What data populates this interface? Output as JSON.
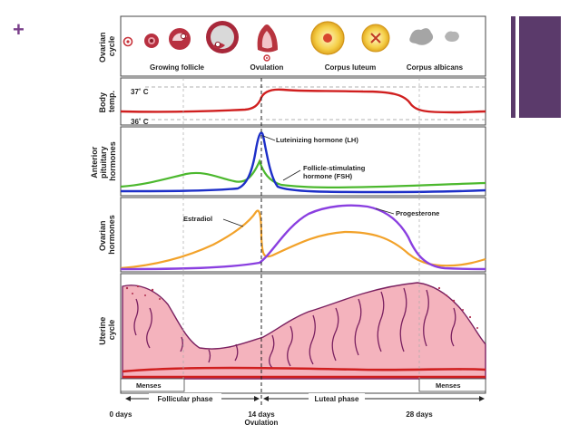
{
  "slide": {
    "plus_glyph": "+",
    "accent_color": "#5b3a6b"
  },
  "diagram": {
    "panels": {
      "ovarian_cycle": {
        "label_lines": [
          "Ovarian",
          "cycle"
        ],
        "stages": [
          "Growing follicle",
          "Ovulation",
          "Corpus luteum",
          "Corpus albicans"
        ]
      },
      "body_temp": {
        "label_lines": [
          "Body",
          "temp."
        ],
        "high_label": "37˚ C",
        "low_label": "36˚ C"
      },
      "pituitary": {
        "label_lines": [
          "Anterior",
          "pituitary",
          "hormones"
        ],
        "lh_label": "Luteinizing hormone (LH)",
        "fsh_label_lines": [
          "Follicle-stimulating",
          "hormone (FSH)"
        ]
      },
      "ovarian_hormones": {
        "label_lines": [
          "Ovarian",
          "hormones"
        ],
        "estradiol_label": "Estradiol",
        "progesterone_label": "Progesterone"
      },
      "uterine_cycle": {
        "label_lines": [
          "Uterine",
          "cycle"
        ]
      }
    },
    "menses_label": "Menses",
    "phases": {
      "follicular": "Follicular phase",
      "luteal": "Luteal phase"
    },
    "timeline": {
      "ticks": [
        "0 days",
        "14 days",
        "28 days"
      ],
      "ovulation_label": "Ovulation"
    },
    "colors": {
      "temp": "#d01f1f",
      "lh": "#1d2fc8",
      "fsh": "#4cb82e",
      "estradiol": "#f2a22a",
      "progesterone": "#8a3fe0",
      "uterine_fill": "#f4b3bd",
      "uterine_line": "#7a2060"
    }
  }
}
